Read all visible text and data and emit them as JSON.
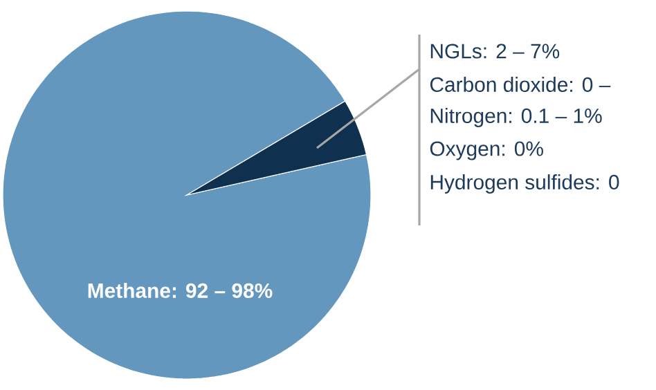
{
  "chart_data": {
    "type": "pie",
    "categories": [
      "Methane: 92 – 98%",
      null
    ],
    "values": [
      95,
      5
    ],
    "colors": [
      "#6397be",
      "#10304f"
    ],
    "annotations": [
      "NGLs: 2 – 7%",
      "Carbon dioxide: 0 –",
      "Nitrogen: 0.1 – 1%",
      "Oxygen: 0%",
      "Hydrogen sulfides: 0"
    ]
  }
}
